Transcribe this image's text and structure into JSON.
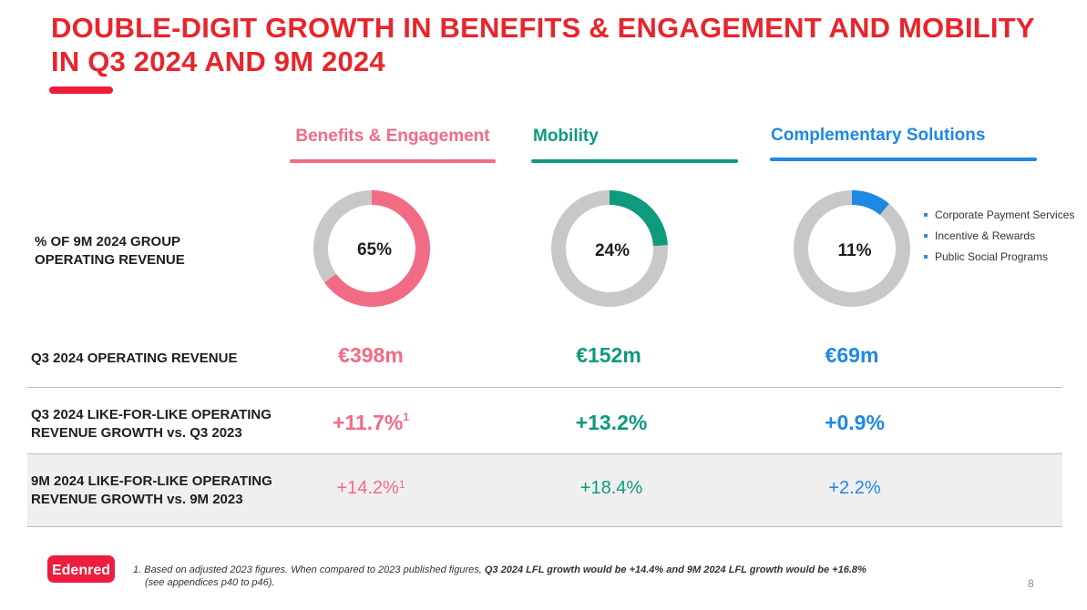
{
  "title": {
    "line1": "DOUBLE-DIGIT GROWTH IN BENEFITS & ENGAGEMENT AND MOBILITY",
    "line2": "IN Q3 2024 AND 9M 2024"
  },
  "columns": [
    {
      "name": "Benefits & Engagement",
      "color": "#f26b85"
    },
    {
      "name": "Mobility",
      "color": "#0e9a7d"
    },
    {
      "name": "Complementary Solutions",
      "color": "#1e88e5"
    }
  ],
  "rows": {
    "share_label": "% OF 9M 2024 GROUP OPERATING REVENUE",
    "q3_revenue_label": "Q3 2024 OPERATING REVENUE",
    "q3_growth_label_line1": "Q3 2024 LIKE-FOR-LIKE OPERATING",
    "q3_growth_label_line2": "REVENUE GROWTH vs. Q3 2023",
    "ninem_growth_label_line1": "9M 2024 LIKE-FOR-LIKE OPERATING",
    "ninem_growth_label_line2": "REVENUE GROWTH vs. 9M 2023"
  },
  "chart_data": {
    "type": "pie",
    "title": "% OF 9M 2024 GROUP OPERATING REVENUE",
    "categories": [
      "Benefits & Engagement",
      "Mobility",
      "Complementary Solutions"
    ],
    "values": [
      65,
      24,
      11
    ],
    "labels": [
      "65%",
      "24%",
      "11%"
    ],
    "remainder_color": "#c8c8c8"
  },
  "values": {
    "q3_revenue": [
      "€398m",
      "€152m",
      "€69m"
    ],
    "q3_growth": [
      "+11.7%",
      "+13.2%",
      "+0.9%"
    ],
    "q3_growth_sup": "1",
    "ninem_growth": [
      "+14.2%",
      "+18.4%",
      "+2.2%"
    ],
    "ninem_growth_sup": "1"
  },
  "legend": [
    "Corporate Payment Services",
    "Incentive & Rewards",
    "Public Social Programs"
  ],
  "footnote": {
    "part1": "1. Based on adjusted 2023 figures. When compared to 2023 published figures, ",
    "bold": "Q3 2024 LFL growth would be +14.4% and 9M 2024 LFL growth would be +16.8%",
    "part2": "(see appendices p40 to p46)."
  },
  "logo_text": "Edenred",
  "page_number": "8",
  "colors": {
    "title": "#e8252b",
    "logo": "#ec1d3d",
    "grey": "#c8c8c8"
  }
}
